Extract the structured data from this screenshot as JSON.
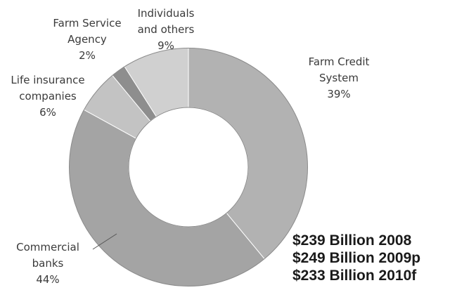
{
  "chart_data": {
    "type": "pie",
    "variant": "donut",
    "title": "",
    "slices": [
      {
        "key": "farm-credit",
        "label_lines": [
          "Farm Credit",
          "System",
          "39%"
        ],
        "value": 39,
        "color": "#b2b2b2"
      },
      {
        "key": "commercial-banks",
        "label_lines": [
          "Commercial",
          "banks",
          "44%"
        ],
        "value": 44,
        "color": "#a4a4a4"
      },
      {
        "key": "life-insurance",
        "label_lines": [
          "Life insurance",
          "companies",
          "6%"
        ],
        "value": 6,
        "color": "#c3c3c3"
      },
      {
        "key": "farm-service",
        "label_lines": [
          "Farm Service",
          "Agency",
          "2%"
        ],
        "value": 2,
        "color": "#8e8e8e"
      },
      {
        "key": "individuals",
        "label_lines": [
          "Individuals",
          "and others",
          "9%"
        ],
        "value": 9,
        "color": "#d0d0d0"
      }
    ],
    "annotations": [
      "$239 Billion 2008",
      "$249 Billion 2009p",
      "$233 Billion 2010f"
    ]
  }
}
